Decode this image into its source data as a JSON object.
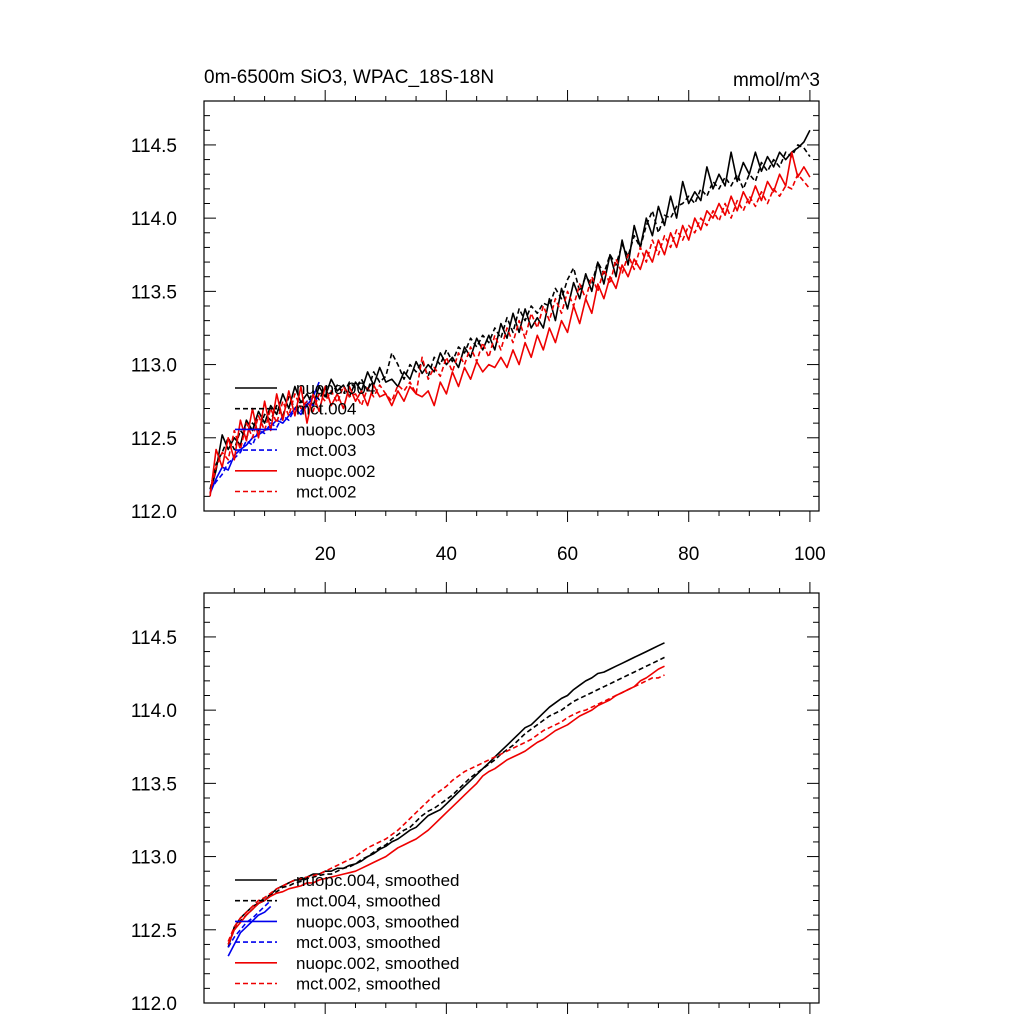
{
  "chart_data": [
    {
      "type": "line",
      "title": "0m-6500m SiO3, WPAC_18S-18N",
      "units_label": "mmol/m^3",
      "xlabel": "",
      "ylabel": "",
      "xlim": [
        0,
        101.5
      ],
      "ylim": [
        112.0,
        114.8
      ],
      "xticks": [
        20,
        40,
        60,
        80,
        100
      ],
      "yticks": [
        112.0,
        112.5,
        113.0,
        113.5,
        114.0,
        114.5
      ],
      "xtick_labels": [
        "20",
        "40",
        "60",
        "80",
        "100"
      ],
      "ytick_labels": [
        "112.0",
        "112.5",
        "113.0",
        "113.5",
        "114.0",
        "114.5"
      ],
      "legend_position": "bottom-left",
      "series": [
        {
          "name": "nuopc.004",
          "color": "#000000",
          "dash": "solid",
          "x_start": 1,
          "values": [
            112.12,
            112.28,
            112.52,
            112.42,
            112.5,
            112.45,
            112.62,
            112.55,
            112.68,
            112.6,
            112.72,
            112.66,
            112.8,
            112.7,
            112.85,
            112.74,
            112.8,
            112.72,
            112.85,
            112.78,
            112.9,
            112.82,
            112.86,
            112.78,
            112.88,
            112.82,
            112.95,
            112.86,
            112.98,
            112.88,
            112.9,
            112.85,
            112.95,
            112.9,
            113.02,
            112.94,
            113.0,
            112.95,
            113.08,
            113.0,
            113.05,
            112.98,
            113.12,
            113.05,
            113.18,
            113.1,
            113.2,
            113.1,
            113.28,
            113.18,
            113.35,
            113.22,
            113.38,
            113.25,
            113.32,
            113.25,
            113.45,
            113.3,
            113.52,
            113.38,
            113.56,
            113.45,
            113.62,
            113.5,
            113.7,
            113.55,
            113.75,
            113.6,
            113.85,
            113.68,
            113.95,
            113.8,
            114.0,
            113.88,
            114.08,
            113.95,
            114.15,
            114.0,
            114.25,
            114.1,
            114.18,
            114.12,
            114.35,
            114.2,
            114.3,
            114.22,
            114.45,
            114.25,
            114.38,
            114.3,
            114.45,
            114.32,
            114.42,
            114.35,
            114.45,
            114.4,
            114.45,
            114.48,
            114.52,
            114.6
          ]
        },
        {
          "name": "mct.004",
          "color": "#000000",
          "dash": "dashed",
          "x_start": 1,
          "values": [
            112.15,
            112.32,
            112.4,
            112.5,
            112.42,
            112.55,
            112.5,
            112.6,
            112.55,
            112.66,
            112.62,
            112.72,
            112.65,
            112.78,
            112.7,
            112.75,
            112.72,
            112.82,
            112.76,
            112.84,
            112.8,
            112.86,
            112.8,
            112.88,
            112.84,
            112.9,
            112.82,
            112.95,
            112.88,
            112.92,
            113.08,
            113.0,
            112.9,
            113.0,
            112.95,
            113.02,
            112.92,
            113.05,
            113.0,
            113.1,
            113.02,
            113.12,
            113.08,
            113.18,
            113.12,
            113.2,
            113.15,
            113.25,
            113.18,
            113.32,
            113.22,
            113.38,
            113.3,
            113.4,
            113.35,
            113.42,
            113.4,
            113.52,
            113.45,
            113.58,
            113.66,
            113.5,
            113.6,
            113.55,
            113.7,
            113.62,
            113.75,
            113.68,
            113.82,
            113.74,
            113.88,
            113.8,
            113.95,
            114.05,
            113.9,
            114.02,
            114.0,
            114.08,
            114.1,
            114.15,
            114.1,
            114.2,
            114.15,
            114.25,
            114.2,
            114.28,
            114.22,
            114.3,
            114.2,
            114.3,
            114.25,
            114.38,
            114.32,
            114.4,
            114.35,
            114.45,
            114.42,
            114.5,
            114.48,
            114.42
          ]
        },
        {
          "name": "nuopc.003",
          "color": "#0000ee",
          "dash": "solid",
          "x_start": 1,
          "values": [
            112.12,
            112.22,
            112.3,
            112.28,
            112.38,
            112.42,
            112.45,
            112.5,
            112.52,
            112.55,
            112.58,
            112.62,
            112.6,
            112.65,
            112.7,
            112.66,
            112.72,
            112.78,
            112.88
          ]
        },
        {
          "name": "mct.003",
          "color": "#0000ee",
          "dash": "dashed",
          "x_start": 1,
          "values": [
            112.14,
            112.2,
            112.25,
            112.33,
            112.36,
            112.4,
            112.48,
            112.45,
            112.55,
            112.53,
            112.6,
            112.57,
            112.65,
            112.62,
            112.7,
            112.68,
            112.75,
            112.72,
            112.8
          ]
        },
        {
          "name": "nuopc.002",
          "color": "#ee0000",
          "dash": "solid",
          "x_start": 1,
          "values": [
            112.1,
            112.42,
            112.3,
            112.5,
            112.35,
            112.62,
            112.48,
            112.7,
            112.5,
            112.75,
            112.55,
            112.8,
            112.62,
            112.82,
            112.65,
            112.85,
            112.6,
            112.8,
            112.68,
            112.85,
            112.72,
            112.8,
            112.7,
            112.85,
            112.75,
            112.82,
            112.72,
            112.86,
            112.78,
            112.8,
            112.72,
            112.82,
            112.75,
            112.85,
            112.8,
            112.78,
            112.82,
            112.72,
            112.88,
            112.8,
            112.95,
            112.85,
            112.98,
            112.9,
            113.02,
            112.95,
            113.0,
            112.98,
            113.05,
            112.98,
            113.1,
            113.0,
            113.15,
            113.05,
            113.2,
            113.1,
            113.25,
            113.15,
            113.3,
            113.22,
            113.4,
            113.28,
            113.45,
            113.35,
            113.55,
            113.45,
            113.6,
            113.52,
            113.68,
            113.6,
            113.72,
            113.65,
            113.78,
            113.7,
            113.85,
            113.75,
            113.9,
            113.8,
            113.95,
            113.85,
            114.0,
            113.92,
            114.05,
            114.0,
            114.1,
            114.02,
            114.15,
            114.05,
            114.18,
            114.1,
            114.22,
            114.12,
            114.25,
            114.18,
            114.3,
            114.22,
            114.45,
            114.28,
            114.35,
            114.28
          ]
        },
        {
          "name": "mct.002",
          "color": "#ee0000",
          "dash": "dashed",
          "x_start": 1,
          "values": [
            112.12,
            112.3,
            112.4,
            112.35,
            112.55,
            112.42,
            112.6,
            112.5,
            112.65,
            112.55,
            112.7,
            112.6,
            112.75,
            112.65,
            112.8,
            112.7,
            112.75,
            112.68,
            112.8,
            112.75,
            112.82,
            112.74,
            112.85,
            112.78,
            112.8,
            112.72,
            112.84,
            112.78,
            112.86,
            112.8,
            112.75,
            112.86,
            112.82,
            112.88,
            112.8,
            113.05,
            112.9,
            112.98,
            112.92,
            113.05,
            112.95,
            113.08,
            113.0,
            113.12,
            113.02,
            113.15,
            113.05,
            113.2,
            113.1,
            113.25,
            113.15,
            113.3,
            113.18,
            113.35,
            113.25,
            113.4,
            113.3,
            113.45,
            113.35,
            113.5,
            113.4,
            113.55,
            113.45,
            113.6,
            113.5,
            113.65,
            113.55,
            113.72,
            113.62,
            113.75,
            113.65,
            113.8,
            113.7,
            113.85,
            113.75,
            113.88,
            113.8,
            113.92,
            113.85,
            113.95,
            113.9,
            114.0,
            113.95,
            114.05,
            113.98,
            114.1,
            114.0,
            114.12,
            114.05,
            114.15,
            114.08,
            114.18,
            114.1,
            114.2,
            114.15,
            114.22,
            114.2,
            114.3,
            114.25,
            114.2
          ]
        }
      ]
    },
    {
      "type": "line",
      "title": "",
      "xlabel": "",
      "ylabel": "",
      "xlim": [
        0,
        101.5
      ],
      "ylim": [
        112.0,
        114.8
      ],
      "xticks": [
        20,
        40,
        60,
        80,
        100
      ],
      "yticks": [
        112.0,
        112.5,
        113.0,
        113.5,
        114.0,
        114.5
      ],
      "ytick_labels": [
        "112.0",
        "112.5",
        "113.0",
        "113.5",
        "114.0",
        "114.5"
      ],
      "legend_position": "bottom-left",
      "series": [
        {
          "name": "nuopc.004, smoothed",
          "color": "#000000",
          "dash": "solid",
          "x_start": 4,
          "values": [
            112.38,
            112.52,
            112.58,
            112.62,
            112.66,
            112.68,
            112.7,
            112.74,
            112.78,
            112.8,
            112.82,
            112.84,
            112.84,
            112.86,
            112.88,
            112.88,
            112.9,
            112.9,
            112.92,
            112.92,
            112.94,
            112.95,
            112.97,
            113.0,
            113.02,
            113.05,
            113.07,
            113.1,
            113.12,
            113.15,
            113.18,
            113.2,
            113.24,
            113.28,
            113.3,
            113.32,
            113.36,
            113.4,
            113.44,
            113.48,
            113.52,
            113.56,
            113.6,
            113.64,
            113.68,
            113.72,
            113.76,
            113.8,
            113.84,
            113.88,
            113.9,
            113.94,
            113.98,
            114.02,
            114.05,
            114.08,
            114.1,
            114.14,
            114.17,
            114.2,
            114.22,
            114.25,
            114.26,
            114.28,
            114.3,
            114.32,
            114.34,
            114.36,
            114.38,
            114.4,
            114.42,
            114.44,
            114.46
          ]
        },
        {
          "name": "mct.004, smoothed",
          "color": "#000000",
          "dash": "dashed",
          "x_start": 4,
          "values": [
            112.4,
            112.5,
            112.56,
            112.6,
            112.64,
            112.68,
            112.72,
            112.74,
            112.76,
            112.79,
            112.8,
            112.82,
            112.83,
            112.85,
            112.86,
            112.87,
            112.88,
            112.88,
            112.9,
            112.92,
            112.93,
            112.95,
            112.98,
            113.0,
            113.03,
            113.06,
            113.08,
            113.12,
            113.15,
            113.18,
            113.2,
            113.24,
            113.28,
            113.31,
            113.33,
            113.36,
            113.39,
            113.42,
            113.46,
            113.5,
            113.54,
            113.57,
            113.6,
            113.63,
            113.66,
            113.7,
            113.73,
            113.76,
            113.8,
            113.84,
            113.87,
            113.9,
            113.93,
            113.96,
            113.98,
            114.0,
            114.03,
            114.06,
            114.08,
            114.1,
            114.12,
            114.14,
            114.16,
            114.18,
            114.2,
            114.22,
            114.24,
            114.26,
            114.28,
            114.3,
            114.32,
            114.34,
            114.36
          ]
        },
        {
          "name": "nuopc.003, smoothed",
          "color": "#0000ee",
          "dash": "solid",
          "x_start": 4,
          "values": [
            112.32,
            112.4,
            112.48,
            112.52,
            112.56,
            112.6,
            112.62,
            112.66
          ]
        },
        {
          "name": "mct.003, smoothed",
          "color": "#0000ee",
          "dash": "dashed",
          "x_start": 4,
          "values": [
            112.38,
            112.45,
            112.5,
            112.55,
            112.58,
            112.62,
            112.66,
            112.7
          ]
        },
        {
          "name": "nuopc.002, smoothed",
          "color": "#ee0000",
          "dash": "solid",
          "x_start": 4,
          "values": [
            112.4,
            112.5,
            112.55,
            112.6,
            112.64,
            112.68,
            112.7,
            112.73,
            112.75,
            112.76,
            112.78,
            112.79,
            112.8,
            112.82,
            112.82,
            112.84,
            112.85,
            112.86,
            112.87,
            112.88,
            112.89,
            112.9,
            112.92,
            112.94,
            112.96,
            112.98,
            113.0,
            113.03,
            113.06,
            113.08,
            113.1,
            113.12,
            113.15,
            113.18,
            113.22,
            113.26,
            113.3,
            113.34,
            113.38,
            113.42,
            113.46,
            113.5,
            113.55,
            113.58,
            113.6,
            113.63,
            113.66,
            113.68,
            113.7,
            113.72,
            113.75,
            113.78,
            113.8,
            113.83,
            113.86,
            113.88,
            113.9,
            113.93,
            113.96,
            113.98,
            114.0,
            114.03,
            114.05,
            114.07,
            114.1,
            114.12,
            114.14,
            114.16,
            114.2,
            114.22,
            114.25,
            114.28,
            114.3
          ]
        },
        {
          "name": "mct.002, smoothed",
          "color": "#ee0000",
          "dash": "dashed",
          "x_start": 4,
          "values": [
            112.42,
            112.52,
            112.58,
            112.62,
            112.66,
            112.7,
            112.72,
            112.75,
            112.78,
            112.8,
            112.82,
            112.84,
            112.85,
            112.86,
            112.87,
            112.88,
            112.9,
            112.92,
            112.94,
            112.96,
            112.98,
            113.0,
            113.03,
            113.06,
            113.08,
            113.1,
            113.12,
            113.15,
            113.18,
            113.22,
            113.26,
            113.3,
            113.34,
            113.38,
            113.42,
            113.45,
            113.48,
            113.52,
            113.55,
            113.58,
            113.6,
            113.62,
            113.64,
            113.66,
            113.68,
            113.7,
            113.72,
            113.74,
            113.76,
            113.78,
            113.8,
            113.83,
            113.86,
            113.88,
            113.9,
            113.92,
            113.95,
            113.97,
            113.99,
            114.0,
            114.02,
            114.04,
            114.06,
            114.08,
            114.1,
            114.12,
            114.14,
            114.16,
            114.18,
            114.2,
            114.22,
            114.22,
            114.24
          ]
        }
      ]
    }
  ]
}
